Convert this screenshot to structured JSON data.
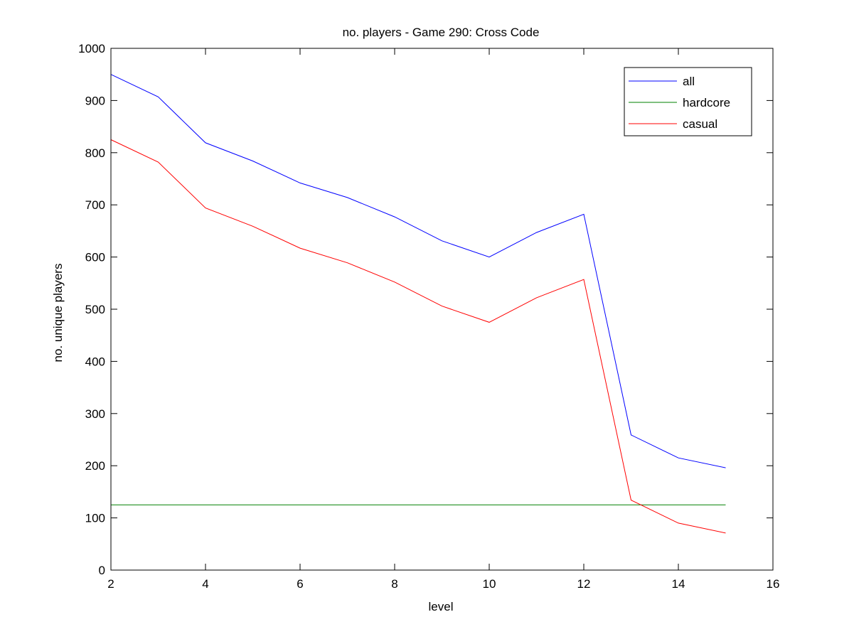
{
  "chart_data": {
    "type": "line",
    "title": "no. players - Game 290: Cross Code",
    "xlabel": "level",
    "ylabel": "no. unique players",
    "xlim": [
      2,
      16
    ],
    "ylim": [
      0,
      1000
    ],
    "xticks": [
      2,
      4,
      6,
      8,
      10,
      12,
      14,
      16
    ],
    "yticks": [
      0,
      100,
      200,
      300,
      400,
      500,
      600,
      700,
      800,
      900,
      1000
    ],
    "grid": false,
    "legend_position": "top-right",
    "x": [
      2,
      3,
      4,
      5,
      6,
      7,
      8,
      9,
      10,
      11,
      12,
      13,
      14,
      15
    ],
    "series": [
      {
        "name": "all",
        "color": "#0000ff",
        "values": [
          950,
          907,
          819,
          784,
          742,
          714,
          677,
          631,
          600,
          647,
          682,
          259,
          215,
          196
        ]
      },
      {
        "name": "hardcore",
        "color": "#008000",
        "values": [
          125,
          125,
          125,
          125,
          125,
          125,
          125,
          125,
          125,
          125,
          125,
          125,
          125,
          125
        ]
      },
      {
        "name": "casual",
        "color": "#ff0000",
        "values": [
          825,
          782,
          694,
          659,
          617,
          589,
          552,
          506,
          475,
          522,
          557,
          134,
          90,
          71
        ]
      }
    ]
  }
}
